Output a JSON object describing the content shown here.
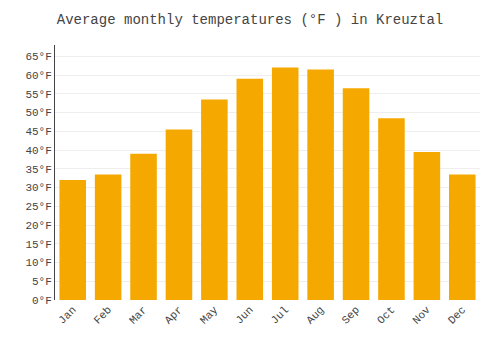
{
  "chart_data": {
    "type": "bar",
    "title": "Average monthly temperatures (°F ) in Kreuztal",
    "categories": [
      "Jan",
      "Feb",
      "Mar",
      "Apr",
      "May",
      "Jun",
      "Jul",
      "Aug",
      "Sep",
      "Oct",
      "Nov",
      "Dec"
    ],
    "values": [
      32,
      33.5,
      39,
      45.5,
      53.5,
      59,
      62,
      61.5,
      56.5,
      48.5,
      39.5,
      33.5
    ],
    "color": "#F5A800",
    "ylim": [
      0,
      68
    ],
    "yticks": [
      {
        "value": 0,
        "label": "0°F"
      },
      {
        "value": 5,
        "label": "5°F"
      },
      {
        "value": 10,
        "label": "10°F"
      },
      {
        "value": 15,
        "label": "15°F"
      },
      {
        "value": 20,
        "label": "20°F"
      },
      {
        "value": 25,
        "label": "25°F"
      },
      {
        "value": 30,
        "label": "30°F"
      },
      {
        "value": 35,
        "label": "35°F"
      },
      {
        "value": 40,
        "label": "40°F"
      },
      {
        "value": 45,
        "label": "45°F"
      },
      {
        "value": 50,
        "label": "50°F"
      },
      {
        "value": 55,
        "label": "55°F"
      },
      {
        "value": 60,
        "label": "60°F"
      },
      {
        "value": 65,
        "label": "65°F"
      }
    ],
    "grid": true
  }
}
